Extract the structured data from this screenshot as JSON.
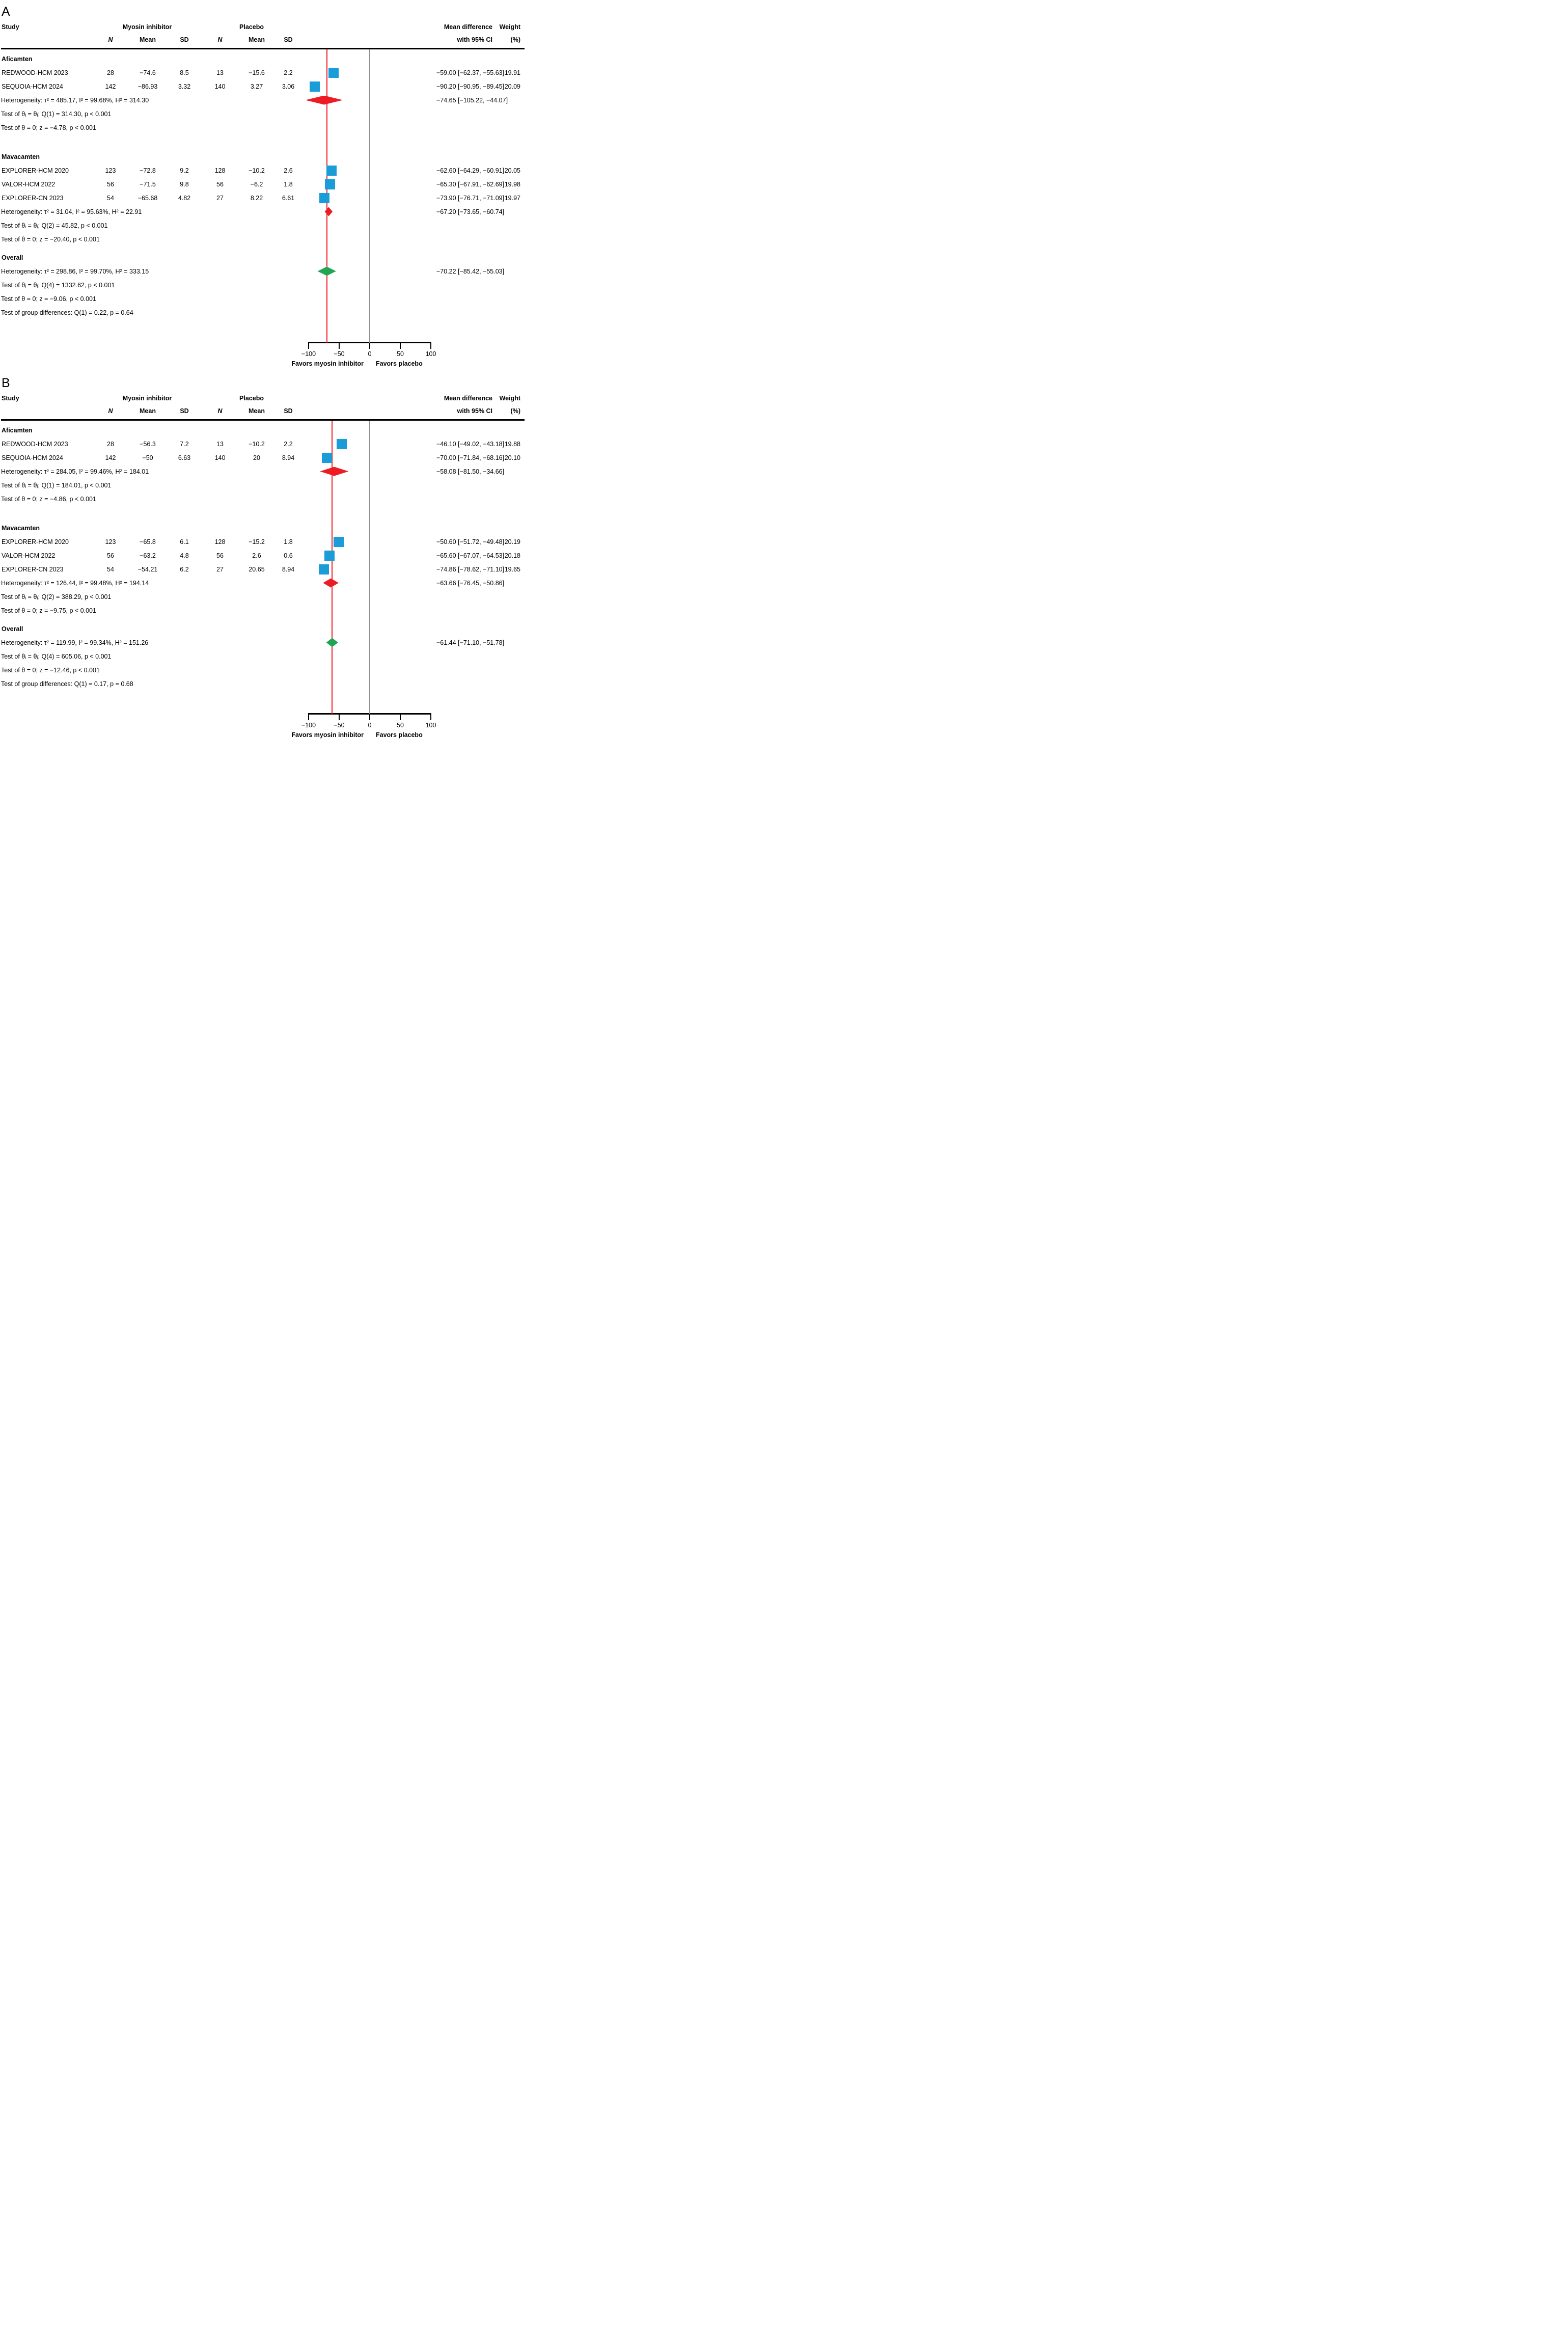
{
  "header": {
    "study": "Study",
    "treatment_group": "Myosin inhibitor",
    "control_group": "Placebo",
    "n": "N",
    "mean": "Mean",
    "sd": "SD",
    "md_line1": "Mean difference",
    "md_line2": "with 95% CI",
    "wt_line1": "Weight",
    "wt_line2": "(%)"
  },
  "colors": {
    "square_blue": "#1a9cd8",
    "diamond_red": "#ed1c24",
    "diamond_green": "#22a455",
    "null_line_gray": "#8f8f8f",
    "effect_line_red": "#ed1c24",
    "axis_black": "#000000"
  },
  "chart_data": [
    {
      "type": "forest",
      "panel": "A",
      "xlim": [
        -100,
        100
      ],
      "ticks": [
        {
          "v": -100,
          "label": "−100"
        },
        {
          "v": -50,
          "label": "−50"
        },
        {
          "v": 0,
          "label": "0"
        },
        {
          "v": 50,
          "label": "50"
        },
        {
          "v": 100,
          "label": "100"
        }
      ],
      "red_line": -70.22,
      "favors_left": "Favors myosin inhibitor",
      "favors_right": "Favors placebo",
      "groups": [
        {
          "name": "Aficamten",
          "studies": [
            {
              "name": "REDWOOD-HCM 2023",
              "n_t": "28",
              "mean_t": "−74.6",
              "sd_t": "8.5",
              "n_c": "13",
              "mean_c": "−15.6",
              "sd_c": "2.2",
              "est": -59.0,
              "lo": -62.37,
              "hi": -55.63,
              "label": "−59.00 [−62.37, −55.63]",
              "weight": "19.91"
            },
            {
              "name": "SEQUOIA-HCM 2024",
              "n_t": "142",
              "mean_t": "−86.93",
              "sd_t": "3.32",
              "n_c": "140",
              "mean_c": "3.27",
              "sd_c": "3.06",
              "est": -90.2,
              "lo": -90.95,
              "hi": -89.45,
              "label": "−90.20 [−90.95, −89.45]",
              "weight": "20.09"
            }
          ],
          "heterogeneity": "Heterogeneity: τ² = 485.17, I² = 99.68%, H² = 314.30",
          "tests": [
            "Test of θᵢ = θⱼ; Q(1) = 314.30, p < 0.001",
            "Test of θ = 0; z = −4.78, p < 0.001"
          ],
          "subtotal": {
            "est": -74.65,
            "lo": -105.22,
            "hi": -44.07,
            "label": "−74.65 [−105.22, −44.07]",
            "color": "red"
          }
        },
        {
          "name": "Mavacamten",
          "studies": [
            {
              "name": "EXPLORER-HCM 2020",
              "n_t": "123",
              "mean_t": "−72.8",
              "sd_t": "9.2",
              "n_c": "128",
              "mean_c": "−10.2",
              "sd_c": "2.6",
              "est": -62.6,
              "lo": -64.29,
              "hi": -60.91,
              "label": "−62.60 [−64.29, −60.91]",
              "weight": "20.05"
            },
            {
              "name": "VALOR-HCM 2022",
              "n_t": "56",
              "mean_t": "−71.5",
              "sd_t": "9.8",
              "n_c": "56",
              "mean_c": "−6.2",
              "sd_c": "1.8",
              "est": -65.3,
              "lo": -67.91,
              "hi": -62.69,
              "label": "−65.30 [−67.91, −62.69]",
              "weight": "19.98"
            },
            {
              "name": "EXPLORER-CN 2023",
              "n_t": "54",
              "mean_t": "−65.68",
              "sd_t": "4.82",
              "n_c": "27",
              "mean_c": "8.22",
              "sd_c": "6.61",
              "est": -73.9,
              "lo": -76.71,
              "hi": -71.09,
              "label": "−73.90 [−76.71, −71.09]",
              "weight": "19.97"
            }
          ],
          "heterogeneity": "Heterogeneity: τ² = 31.04, I² = 95.63%, H² = 22.91",
          "tests": [
            "Test of θᵢ = θⱼ; Q(2) = 45.82, p < 0.001",
            "Test of θ = 0; z = −20.40, p < 0.001"
          ],
          "subtotal": {
            "est": -67.2,
            "lo": -73.65,
            "hi": -60.74,
            "label": "−67.20 [−73.65, −60.74]",
            "color": "red"
          }
        }
      ],
      "overall": {
        "name": "Overall",
        "heterogeneity": "Heterogeneity: τ² = 298.86, I² = 99.70%, H² = 333.15",
        "tests": [
          "Test of θᵢ = θⱼ; Q(4) = 1332.62, p < 0.001",
          "Test of θ = 0; z = −9.06, p < 0.001"
        ],
        "group_diff": "Test of group differences: Q(1) = 0.22, p = 0.64",
        "estimate": {
          "est": -70.22,
          "lo": -85.42,
          "hi": -55.03,
          "label": "−70.22 [−85.42, −55.03]",
          "color": "green"
        }
      }
    },
    {
      "type": "forest",
      "panel": "B",
      "xlim": [
        -100,
        100
      ],
      "ticks": [
        {
          "v": -100,
          "label": "−100"
        },
        {
          "v": -50,
          "label": "−50"
        },
        {
          "v": 0,
          "label": "0"
        },
        {
          "v": 50,
          "label": "50"
        },
        {
          "v": 100,
          "label": "100"
        }
      ],
      "red_line": -61.44,
      "favors_left": "Favors myosin inhibitor",
      "favors_right": "Favors placebo",
      "groups": [
        {
          "name": "Aficamten",
          "studies": [
            {
              "name": "REDWOOD-HCM 2023",
              "n_t": "28",
              "mean_t": "−56.3",
              "sd_t": "7.2",
              "n_c": "13",
              "mean_c": "−10.2",
              "sd_c": "2.2",
              "est": -46.1,
              "lo": -49.02,
              "hi": -43.18,
              "label": "−46.10 [−49.02, −43.18]",
              "weight": "19.88"
            },
            {
              "name": "SEQUOIA-HCM 2024",
              "n_t": "142",
              "mean_t": "−50",
              "sd_t": "6.63",
              "n_c": "140",
              "mean_c": "20",
              "sd_c": "8.94",
              "est": -70.0,
              "lo": -71.84,
              "hi": -68.16,
              "label": "−70.00 [−71.84, −68.16]",
              "weight": "20.10"
            }
          ],
          "heterogeneity": "Heterogeneity: τ² = 284.05, I² = 99.46%, H² = 184.01",
          "tests": [
            "Test of θᵢ = θⱼ; Q(1) = 184.01, p < 0.001",
            "Test of θ = 0; z = −4.86, p < 0.001"
          ],
          "subtotal": {
            "est": -58.08,
            "lo": -81.5,
            "hi": -34.66,
            "label": "−58.08 [−81.50, −34.66]",
            "color": "red"
          }
        },
        {
          "name": "Mavacamten",
          "studies": [
            {
              "name": "EXPLORER-HCM 2020",
              "n_t": "123",
              "mean_t": "−65.8",
              "sd_t": "6.1",
              "n_c": "128",
              "mean_c": "−15.2",
              "sd_c": "1.8",
              "est": -50.6,
              "lo": -51.72,
              "hi": -49.48,
              "label": "−50.60 [−51.72, −49.48]",
              "weight": "20.19"
            },
            {
              "name": "VALOR-HCM 2022",
              "n_t": "56",
              "mean_t": "−63.2",
              "sd_t": "4.8",
              "n_c": "56",
              "mean_c": "2.6",
              "sd_c": "0.6",
              "est": -65.6,
              "lo": -67.07,
              "hi": -64.53,
              "label": "−65.60 [−67.07, −64.53]",
              "weight": "20.18"
            },
            {
              "name": "EXPLORER-CN 2023",
              "n_t": "54",
              "mean_t": "−54.21",
              "sd_t": "6.2",
              "n_c": "27",
              "mean_c": "20.65",
              "sd_c": "8.94",
              "est": -74.86,
              "lo": -78.62,
              "hi": -71.1,
              "label": "−74.86 [−78.62, −71.10]",
              "weight": "19.65"
            }
          ],
          "heterogeneity": "Heterogeneity: τ² = 126.44, I² = 99.48%, H² = 194.14",
          "tests": [
            "Test of θᵢ = θⱼ; Q(2) = 388.29, p < 0.001",
            "Test of θ = 0; z = −9.75, p < 0.001"
          ],
          "subtotal": {
            "est": -63.66,
            "lo": -76.45,
            "hi": -50.86,
            "label": "−63.66 [−76.45, −50.86]",
            "color": "red"
          }
        }
      ],
      "overall": {
        "name": "Overall",
        "heterogeneity": "Heterogeneity: τ² = 119.99, I² = 99.34%, H² = 151.26",
        "tests": [
          "Test of θᵢ = θⱼ; Q(4) = 605.06, p < 0.001",
          "Test of θ = 0; z = −12.46, p < 0.001"
        ],
        "group_diff": "Test of group differences: Q(1) = 0.17, p = 0.68",
        "estimate": {
          "est": -61.44,
          "lo": -71.1,
          "hi": -51.78,
          "label": "−61.44 [−71.10, −51.78]",
          "color": "green"
        }
      }
    }
  ]
}
